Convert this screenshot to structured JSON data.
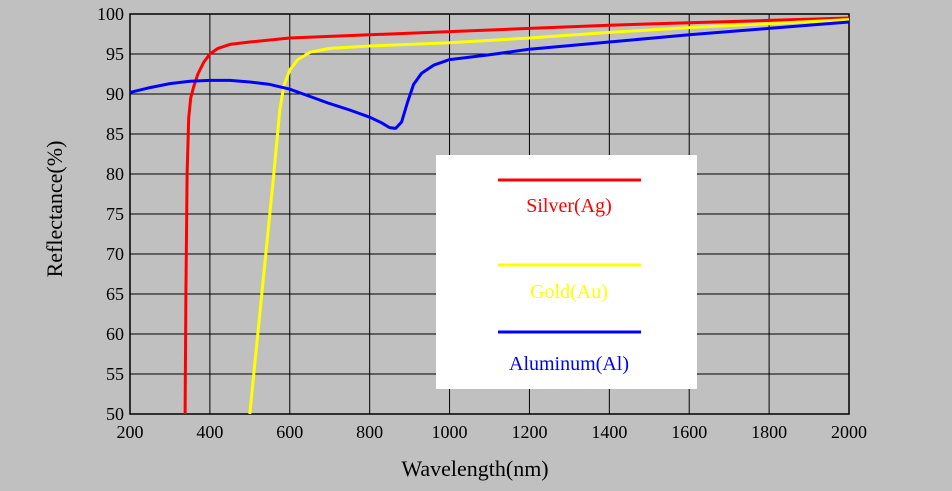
{
  "chart_data": {
    "type": "line",
    "title": "",
    "xlabel": "Wavelength(nm)",
    "ylabel": "Reflectance(%)",
    "xlim": [
      200,
      2000
    ],
    "ylim": [
      50,
      100
    ],
    "x_ticks": [
      200,
      400,
      600,
      800,
      1000,
      1200,
      1400,
      1600,
      1800,
      2000
    ],
    "y_ticks": [
      50,
      55,
      60,
      65,
      70,
      75,
      80,
      85,
      90,
      95,
      100
    ],
    "grid": true,
    "legend_position": "center-right",
    "background_color": "#c0c0c0",
    "legend_background": "#ffffff",
    "series": [
      {
        "name": "Silver(Ag)",
        "color": "#ff0000",
        "points": [
          [
            338,
            50
          ],
          [
            340,
            65
          ],
          [
            343,
            80
          ],
          [
            347,
            87
          ],
          [
            352,
            89.5
          ],
          [
            360,
            91
          ],
          [
            370,
            92.5
          ],
          [
            385,
            94
          ],
          [
            400,
            95
          ],
          [
            420,
            95.7
          ],
          [
            450,
            96.2
          ],
          [
            500,
            96.5
          ],
          [
            600,
            97
          ],
          [
            800,
            97.4
          ],
          [
            1000,
            97.8
          ],
          [
            1200,
            98.2
          ],
          [
            1400,
            98.6
          ],
          [
            1600,
            98.9
          ],
          [
            1800,
            99.2
          ],
          [
            2000,
            99.5
          ]
        ]
      },
      {
        "name": "Gold(Au)",
        "color": "#ffff00",
        "points": [
          [
            500,
            50
          ],
          [
            520,
            60
          ],
          [
            540,
            70
          ],
          [
            560,
            80
          ],
          [
            575,
            88
          ],
          [
            585,
            91
          ],
          [
            600,
            93
          ],
          [
            620,
            94.3
          ],
          [
            650,
            95.2
          ],
          [
            700,
            95.7
          ],
          [
            800,
            96
          ],
          [
            900,
            96.2
          ],
          [
            1000,
            96.4
          ],
          [
            1200,
            97
          ],
          [
            1400,
            97.7
          ],
          [
            1600,
            98.3
          ],
          [
            1800,
            98.8
          ],
          [
            2000,
            99.3
          ]
        ]
      },
      {
        "name": "Aluminum(Al)",
        "color": "#0000ff",
        "points": [
          [
            200,
            90.2
          ],
          [
            250,
            90.8
          ],
          [
            300,
            91.3
          ],
          [
            350,
            91.6
          ],
          [
            400,
            91.7
          ],
          [
            450,
            91.7
          ],
          [
            500,
            91.5
          ],
          [
            550,
            91.2
          ],
          [
            600,
            90.6
          ],
          [
            650,
            89.7
          ],
          [
            700,
            88.8
          ],
          [
            750,
            88
          ],
          [
            800,
            87.1
          ],
          [
            830,
            86.4
          ],
          [
            850,
            85.8
          ],
          [
            865,
            85.7
          ],
          [
            880,
            86.5
          ],
          [
            895,
            89
          ],
          [
            910,
            91.2
          ],
          [
            930,
            92.6
          ],
          [
            960,
            93.6
          ],
          [
            1000,
            94.3
          ],
          [
            1100,
            94.9
          ],
          [
            1200,
            95.6
          ],
          [
            1400,
            96.5
          ],
          [
            1600,
            97.4
          ],
          [
            1800,
            98.2
          ],
          [
            2000,
            99
          ]
        ]
      }
    ]
  }
}
